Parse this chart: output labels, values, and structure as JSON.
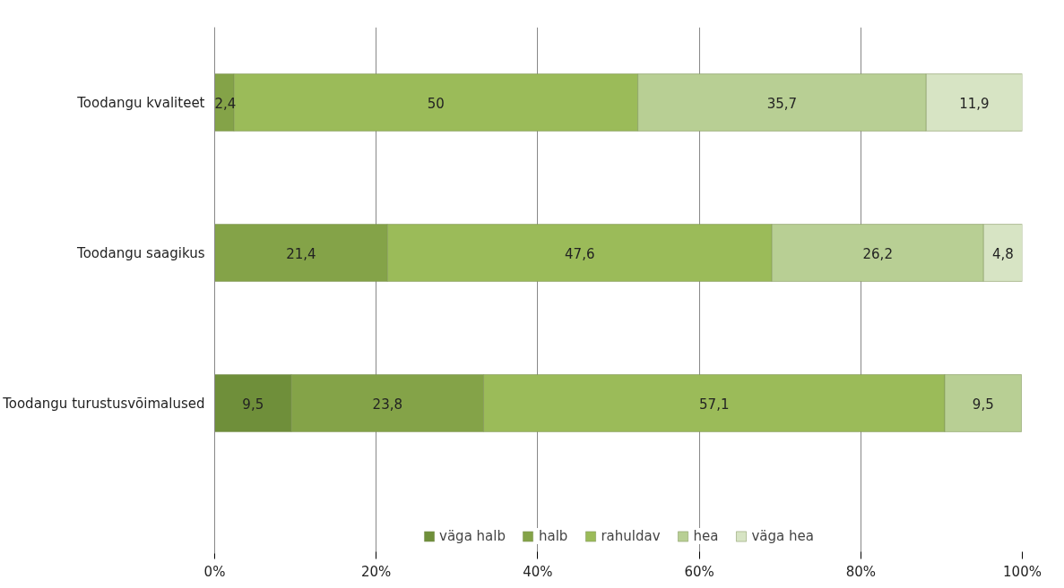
{
  "chart_data": {
    "type": "bar",
    "orientation": "horizontal",
    "stacked": true,
    "categories": [
      "Toodangu kvaliteet",
      "Toodangu saagikus",
      "Toodangu turustusvõimalused"
    ],
    "series": [
      {
        "name": "väga halb",
        "color": "#6f8f3a",
        "values": [
          null,
          null,
          9.5
        ],
        "value_labels": [
          null,
          null,
          "9,5"
        ]
      },
      {
        "name": "halb",
        "color": "#84a348",
        "values": [
          2.4,
          21.4,
          23.8
        ],
        "value_labels": [
          "2,4",
          "21,4",
          "23,8"
        ]
      },
      {
        "name": "rahuldav",
        "color": "#9bbb59",
        "values": [
          50,
          47.6,
          57.1
        ],
        "value_labels": [
          "50",
          "47,6",
          "57,1"
        ]
      },
      {
        "name": "hea",
        "color": "#b8cf94",
        "values": [
          35.7,
          26.2,
          9.5
        ],
        "value_labels": [
          "35,7",
          "26,2",
          "9,5"
        ]
      },
      {
        "name": "väga hea",
        "color": "#d7e4c4",
        "values": [
          11.9,
          4.8,
          null
        ],
        "value_labels": [
          "11,9",
          "4,8",
          null
        ]
      }
    ],
    "xlim": [
      0,
      100
    ],
    "xticks": [
      {
        "value": 0,
        "label": "0%"
      },
      {
        "value": 20,
        "label": "20%"
      },
      {
        "value": 40,
        "label": "40%"
      },
      {
        "value": 60,
        "label": "60%"
      },
      {
        "value": 80,
        "label": "80%"
      },
      {
        "value": 100,
        "label": "100%"
      }
    ],
    "grid": "x",
    "legend": "bottom"
  }
}
